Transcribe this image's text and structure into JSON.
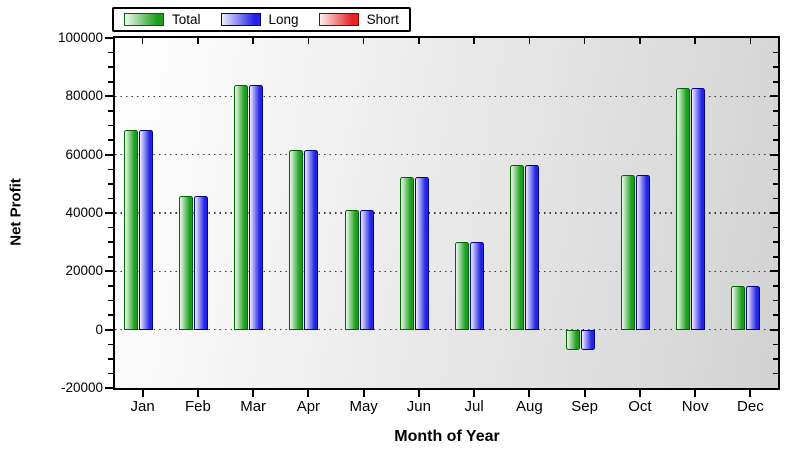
{
  "chart_data": {
    "type": "bar",
    "title": "",
    "xlabel": "Month of Year",
    "ylabel": "Net Profit",
    "categories": [
      "Jan",
      "Feb",
      "Mar",
      "Apr",
      "May",
      "Jun",
      "Jul",
      "Aug",
      "Sep",
      "Oct",
      "Nov",
      "Dec"
    ],
    "series": [
      {
        "name": "Total",
        "fill": "#1b9e1b",
        "fill_light": "#f0faf0",
        "border": "#006400",
        "values": [
          68500,
          46000,
          84000,
          61500,
          41000,
          52500,
          30000,
          56500,
          -7000,
          53000,
          83000,
          15000
        ]
      },
      {
        "name": "Long",
        "fill": "#2323e6",
        "fill_light": "#efeffd",
        "border": "#00008b",
        "values": [
          68500,
          46000,
          84000,
          61500,
          41000,
          52500,
          30000,
          56500,
          -7000,
          53000,
          83000,
          15000
        ]
      },
      {
        "name": "Short",
        "fill": "#e62323",
        "fill_light": "#fdefef",
        "border": "#8b0000",
        "values": [
          0,
          0,
          0,
          0,
          0,
          0,
          0,
          0,
          0,
          0,
          0,
          0
        ]
      }
    ],
    "ylim": [
      -20000,
      100000
    ],
    "ytick_major_step": 20000,
    "ytick_minor_step": 5000,
    "ytick_labels": [
      "100000",
      "80000",
      "60000",
      "40000",
      "20000",
      "0",
      "-20000"
    ],
    "grid": "horizontal-dotted-at-majors",
    "legend_position": "top-left",
    "plot_bg_gradient": [
      "#ffffff",
      "#d2d2d2"
    ],
    "frame_color": "#000000",
    "grid_color": "#3a3a3a"
  }
}
